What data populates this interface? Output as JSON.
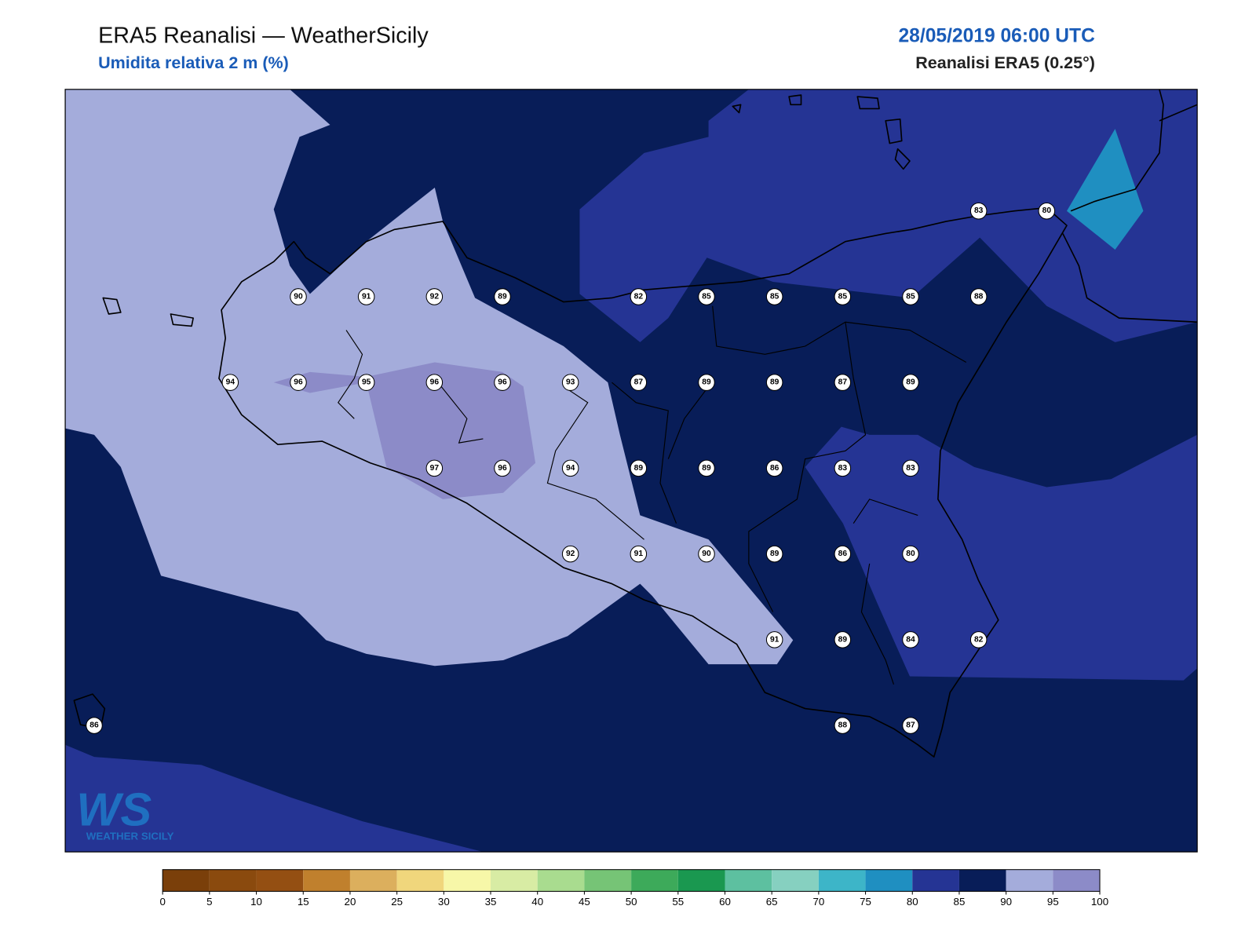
{
  "header": {
    "title": "ERA5 Reanalisi — WeatherSicily",
    "subtitle": "Umidita relativa 2 m (%)",
    "datetime": "28/05/2019 06:00 UTC",
    "source": "Reanalisi ERA5 (0.25°)"
  },
  "logo": {
    "mark": "WS",
    "name": "WEATHER SICILY"
  },
  "map": {
    "rows": [
      [
        null,
        null,
        null,
        null,
        null,
        null,
        null,
        null,
        null,
        null,
        null,
        null,
        null,
        83,
        80
      ],
      [
        null,
        null,
        null,
        90,
        91,
        92,
        89,
        null,
        82,
        85,
        85,
        85,
        85,
        88,
        null
      ],
      [
        null,
        null,
        94,
        96,
        95,
        96,
        96,
        93,
        87,
        89,
        89,
        87,
        89,
        null,
        null
      ],
      [
        null,
        null,
        null,
        null,
        null,
        97,
        96,
        94,
        89,
        89,
        86,
        83,
        83,
        null,
        null
      ],
      [
        null,
        null,
        null,
        null,
        null,
        null,
        null,
        92,
        91,
        90,
        89,
        86,
        80,
        null,
        null
      ],
      [
        null,
        null,
        null,
        null,
        null,
        null,
        null,
        null,
        null,
        null,
        91,
        89,
        84,
        82,
        null
      ],
      [
        86,
        null,
        null,
        null,
        null,
        null,
        null,
        null,
        null,
        null,
        null,
        88,
        87,
        null,
        null
      ]
    ]
  },
  "colorbar": {
    "ticks": [
      0,
      5,
      10,
      15,
      20,
      25,
      30,
      35,
      40,
      45,
      50,
      55,
      60,
      65,
      70,
      75,
      80,
      85,
      90,
      95,
      100
    ],
    "colors": [
      "#7a3f0a",
      "#8a4a0e",
      "#944f12",
      "#c0802d",
      "#dcaf5d",
      "#f0d67c",
      "#f7f7a8",
      "#d8eca4",
      "#a9dc8f",
      "#76c476",
      "#3daa5a",
      "#1a9850",
      "#5dc0a0",
      "#86d0c0",
      "#3db5c8",
      "#1f8fc1",
      "#253494",
      "#081d58",
      "#a4acdb",
      "#8c8bc8"
    ]
  }
}
